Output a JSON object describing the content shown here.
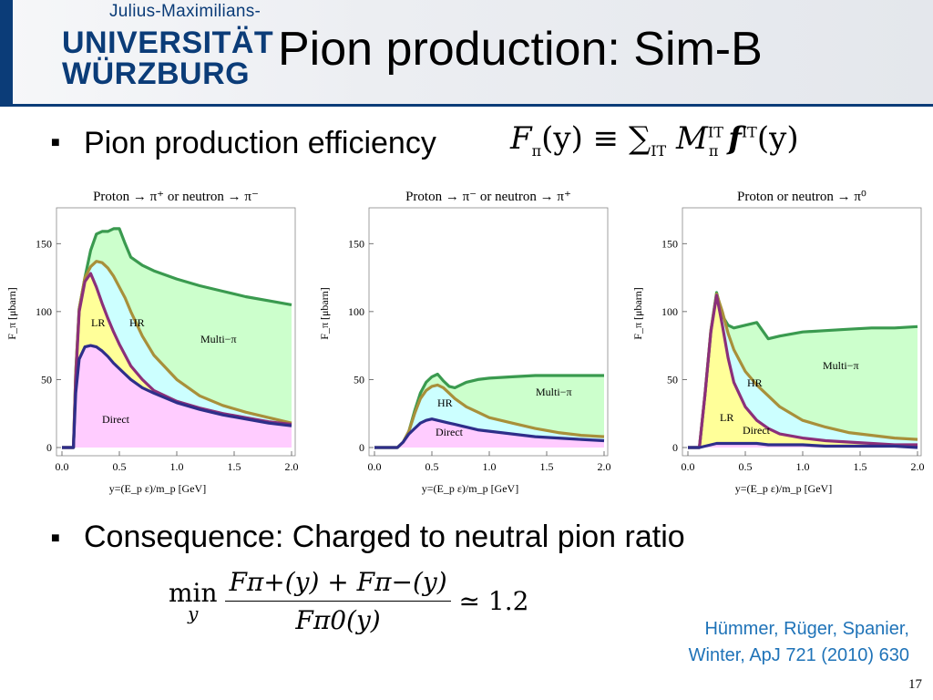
{
  "header": {
    "logo_top": "Julius-Maximilians-",
    "logo_line1": "UNIVERSITÄT",
    "logo_line2": "WÜRZBURG"
  },
  "title": "Pion production: Sim-B",
  "bullets": [
    {
      "text": "Pion production efficiency"
    },
    {
      "text": "Consequence: Charged to neutral pion ratio"
    }
  ],
  "formula1": {
    "lhs": "F",
    "lhs_sub": "π",
    "arg": "(y) ≡ ∑",
    "sum_sub": "IT",
    "m": "M",
    "m_sub": "π",
    "m_sup": "IT",
    "f": "f",
    "f_sup": "IT",
    "f_arg": "(y)"
  },
  "formula2": {
    "min": "min",
    "min_sub": "y",
    "numerator": "Fπ+(y) + Fπ−(y)",
    "denominator": "Fπ0(y)",
    "rhs": "≃ 1.2"
  },
  "citation": {
    "line1": "Hümmer, Rüger, Spanier,",
    "line2": "Winter,  ApJ 721 (2010) 630"
  },
  "page_number": "17",
  "colors": {
    "direct_fill": "#ffccff",
    "direct_line": "#2e2e8a",
    "lr_fill": "#ffff99",
    "lr_line": "#8b2f7a",
    "hr_fill": "#ccffff",
    "hr_line": "#a8903a",
    "multi_fill": "#ccffcc",
    "multi_line": "#3a9a4f"
  },
  "chart_data": [
    {
      "type": "area",
      "title": "Proton → π⁺ or neutron → π⁻",
      "xlabel": "y=(E_p ε)/m_p [GeV]",
      "ylabel": "F_π [μbarn]",
      "xlim": [
        0,
        2.0
      ],
      "ylim": [
        0,
        175
      ],
      "xticks": [
        "0.0",
        "0.5",
        "1.0",
        "1.5",
        "2.0"
      ],
      "yticks": [
        "0",
        "50",
        "100",
        "150"
      ],
      "x": [
        0,
        0.1,
        0.12,
        0.15,
        0.2,
        0.25,
        0.3,
        0.35,
        0.4,
        0.45,
        0.5,
        0.55,
        0.6,
        0.7,
        0.8,
        1.0,
        1.2,
        1.4,
        1.6,
        1.8,
        2.0
      ],
      "series": [
        {
          "name": "Direct",
          "values": [
            0,
            0,
            40,
            65,
            74,
            75,
            74,
            71,
            67,
            62,
            58,
            54,
            50,
            44,
            40,
            33,
            28,
            24,
            21,
            18,
            16
          ]
        },
        {
          "name": "LR",
          "values": [
            0,
            0,
            50,
            100,
            122,
            128,
            118,
            106,
            95,
            85,
            76,
            68,
            60,
            50,
            42,
            34,
            29,
            25,
            22,
            19,
            17
          ]
        },
        {
          "name": "HR",
          "values": [
            0,
            0,
            55,
            102,
            125,
            133,
            137,
            136,
            132,
            126,
            118,
            110,
            100,
            82,
            68,
            50,
            38,
            31,
            26,
            22,
            18
          ]
        },
        {
          "name": "Multi−π",
          "values": [
            0,
            0,
            55,
            102,
            125,
            145,
            157,
            159,
            159,
            161,
            161,
            150,
            140,
            134,
            130,
            124,
            119,
            115,
            111,
            108,
            105
          ]
        }
      ],
      "annotations": [
        "Direct",
        "LR",
        "HR",
        "Multi−π"
      ]
    },
    {
      "type": "area",
      "title": "Proton → π⁻ or neutron → π⁺",
      "xlabel": "y=(E_p ε)/m_p [GeV]",
      "ylabel": "F_π [μbarn]",
      "xlim": [
        0,
        2.0
      ],
      "ylim": [
        0,
        175
      ],
      "xticks": [
        "0.0",
        "0.5",
        "1.0",
        "1.5",
        "2.0"
      ],
      "yticks": [
        "0",
        "50",
        "100",
        "150"
      ],
      "x": [
        0,
        0.2,
        0.25,
        0.3,
        0.35,
        0.4,
        0.45,
        0.5,
        0.55,
        0.6,
        0.65,
        0.7,
        0.8,
        0.9,
        1.0,
        1.2,
        1.4,
        1.6,
        1.8,
        2.0
      ],
      "series": [
        {
          "name": "Direct",
          "values": [
            0,
            0,
            4,
            10,
            14,
            18,
            20,
            21,
            20,
            19,
            18,
            17,
            15,
            13,
            12,
            10,
            8,
            7,
            6,
            5
          ]
        },
        {
          "name": "HR",
          "values": [
            0,
            0,
            4,
            12,
            25,
            36,
            42,
            45,
            46,
            44,
            40,
            36,
            30,
            26,
            22,
            18,
            14,
            11,
            9,
            8
          ]
        },
        {
          "name": "Multi−π",
          "values": [
            0,
            0,
            4,
            12,
            27,
            40,
            48,
            52,
            54,
            49,
            45,
            44,
            48,
            50,
            51,
            52,
            53,
            53,
            53,
            53
          ]
        }
      ],
      "annotations": [
        "Direct",
        "HR",
        "Multi−π"
      ]
    },
    {
      "type": "area",
      "title": "Proton or neutron → π⁰",
      "xlabel": "y=(E_p ε)/m_p [GeV]",
      "ylabel": "F_π [μbarn]",
      "xlim": [
        0,
        2.0
      ],
      "ylim": [
        0,
        175
      ],
      "xticks": [
        "0.0",
        "0.5",
        "1.0",
        "1.5",
        "2.0"
      ],
      "yticks": [
        "0",
        "50",
        "100",
        "150"
      ],
      "x": [
        0,
        0.1,
        0.15,
        0.2,
        0.25,
        0.3,
        0.35,
        0.4,
        0.5,
        0.6,
        0.7,
        0.8,
        1.0,
        1.2,
        1.4,
        1.6,
        1.8,
        2.0
      ],
      "series": [
        {
          "name": "Direct",
          "values": [
            0,
            0,
            1,
            2,
            3,
            3,
            3,
            3,
            3,
            3,
            2,
            2,
            2,
            1,
            1,
            1,
            1,
            0
          ]
        },
        {
          "name": "LR",
          "values": [
            0,
            0,
            40,
            85,
            112,
            90,
            66,
            48,
            30,
            20,
            14,
            10,
            7,
            5,
            4,
            3,
            2,
            2
          ]
        },
        {
          "name": "HR",
          "values": [
            0,
            0,
            40,
            86,
            113,
            100,
            84,
            72,
            56,
            46,
            38,
            30,
            20,
            15,
            11,
            9,
            7,
            6
          ]
        },
        {
          "name": "Multi−π",
          "values": [
            0,
            0,
            40,
            86,
            114,
            97,
            90,
            88,
            90,
            92,
            80,
            82,
            85,
            86,
            87,
            88,
            88,
            89
          ]
        }
      ],
      "annotations": [
        "LR",
        "Direct",
        "HR",
        "Multi−π"
      ]
    }
  ]
}
